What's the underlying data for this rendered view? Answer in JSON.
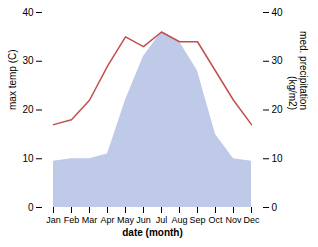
{
  "chart_data": {
    "type": "line",
    "categories": [
      "Jan",
      "Feb",
      "Mar",
      "Apr",
      "May",
      "Jun",
      "Jul",
      "Aug",
      "Sep",
      "Oct",
      "Nov",
      "Dec"
    ],
    "xlabel": "date (month)",
    "ylabel": "max temp (C)",
    "y2label": "med. precipitation\n(kg/m2)",
    "series": [
      {
        "type": "area",
        "axis": "y2",
        "color": "#bfc9e8",
        "values": [
          9.5,
          10,
          10,
          11,
          22,
          31,
          36,
          34,
          28,
          15,
          10,
          9.5
        ]
      },
      {
        "type": "line",
        "color": "#c0504d",
        "values": [
          17,
          18,
          22,
          29,
          35,
          33,
          36,
          34,
          34,
          28,
          22,
          17
        ]
      }
    ],
    "ylim": [
      0,
      40
    ],
    "yticks": [
      0,
      10,
      20,
      30,
      40
    ],
    "y2lim": [
      0,
      40
    ],
    "y2ticks": [
      0,
      10,
      20,
      30,
      40
    ],
    "grid": false
  }
}
